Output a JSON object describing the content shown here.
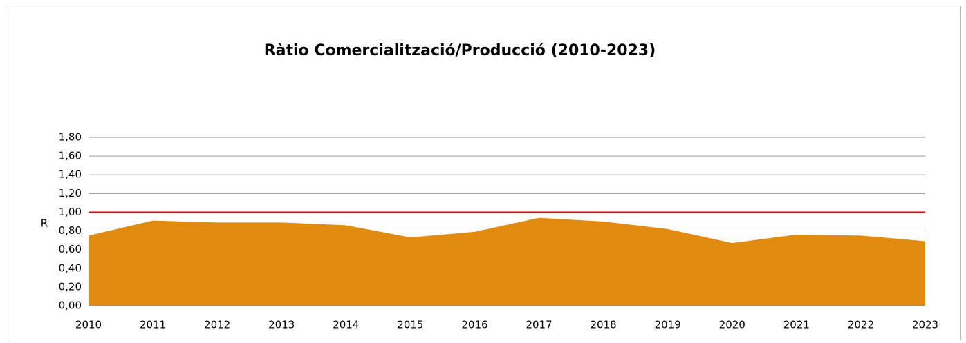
{
  "chart_data": {
    "type": "area",
    "title": "Ràtio Comercialització/Producció (2010-2023)",
    "y_label": "R",
    "x": [
      2010,
      2011,
      2012,
      2013,
      2014,
      2015,
      2016,
      2017,
      2018,
      2019,
      2020,
      2021,
      2022,
      2023
    ],
    "series": [
      {
        "color": "#e08a10",
        "values": [
          0.75,
          0.91,
          0.89,
          0.89,
          0.86,
          0.73,
          0.79,
          0.94,
          0.9,
          0.82,
          0.67,
          0.76,
          0.75,
          0.69
        ]
      },
      {
        "color": "#e00000",
        "kind": "line",
        "values": [
          1,
          1,
          1,
          1,
          1,
          1,
          1,
          1,
          1,
          1,
          1,
          1,
          1,
          1
        ]
      }
    ],
    "xlim": [
      2010,
      2023
    ],
    "xticks": [
      2010,
      2011,
      2012,
      2013,
      2014,
      2015,
      2016,
      2017,
      2018,
      2019,
      2020,
      2021,
      2022,
      2023
    ],
    "ylim": [
      0,
      1.8
    ],
    "yticks": [
      {
        "value": 0,
        "label": "0,00"
      },
      {
        "value": 0.2,
        "label": "0,20"
      },
      {
        "value": 0.4,
        "label": "0,40"
      },
      {
        "value": 0.6,
        "label": "0,60"
      },
      {
        "value": 0.8,
        "label": "0,80"
      },
      {
        "value": 1,
        "label": "1,00"
      },
      {
        "value": 1.2,
        "label": "1,20"
      },
      {
        "value": 1.4,
        "label": "1,40"
      },
      {
        "value": 1.6,
        "label": "1,60"
      },
      {
        "value": 1.8,
        "label": "1,80"
      }
    ],
    "grid": true
  }
}
